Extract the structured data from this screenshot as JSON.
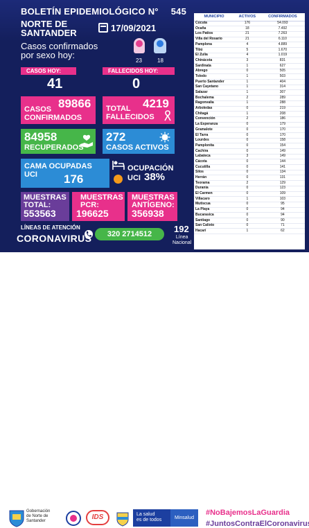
{
  "header": {
    "title": "BOLETÍN EPIDEMIOLÓGICO N°",
    "number": "545",
    "region_line1": "NORTE DE",
    "region_line2": "SANTANDER",
    "date": "17/09/2021",
    "sex_label_line1": "Casos confirmados",
    "sex_label_line2": "por sexo hoy:",
    "female_count": "23",
    "male_count": "18"
  },
  "today": {
    "cases_label": "CASOS HOY:",
    "cases_value": "41",
    "deaths_label": "FALLECIDOS HOY:",
    "deaths_value": "0"
  },
  "cards": {
    "confirmed_value": "89866",
    "confirmed_line1": "CASOS",
    "confirmed_line2": "CONFIRMADOS",
    "deaths_line1": "TOTAL",
    "deaths_line2": "FALLECIDOS",
    "deaths_value": "4219",
    "recovered_value": "84958",
    "recovered_label": "RECUPERADOS",
    "active_value": "272",
    "active_label": "CASOS ACTIVOS",
    "icu_line1": "CAMA OCUPADAS",
    "icu_line2": "UCI",
    "icu_value": "176",
    "occupancy_line1": "OCUPACIÓN",
    "occupancy_line2": "UCI",
    "occupancy_value": "38%",
    "tests_line1": "MUESTRAS",
    "tests_line2": "TOTAL:",
    "tests_value": "553563",
    "pcr_line1": "MUESTRAS",
    "pcr_line2": "PCR:",
    "pcr_value": "196625",
    "antigen_line1": "MUESTRAS",
    "antigen_line2": "ANTÍGENO:",
    "antigen_value": "356938"
  },
  "hotline": {
    "lines_label": "LÍNEAS DE ATENCIÓN",
    "coronavirus": "CORONAVIRUS",
    "phone": "320 2714512",
    "short_number": "192",
    "short_label_line1": "Línea",
    "short_label_line2": "Nacional"
  },
  "table": {
    "headers": [
      "MUNICIPIO",
      "ACTIVOS",
      "CONFIRMADOS"
    ],
    "rows": [
      [
        "Cúcuta",
        "176",
        "54.093"
      ],
      [
        "Ocaña",
        "18",
        "7.492"
      ],
      [
        "Los Patios",
        "21",
        "7.263"
      ],
      [
        "Villa del Rosario",
        "21",
        "6.110"
      ],
      [
        "Pamplona",
        "4",
        "4.889"
      ],
      [
        "Tibú",
        "5",
        "1.670"
      ],
      [
        "El Zulia",
        "4",
        "1.019"
      ],
      [
        "Chinácota",
        "3",
        "831"
      ],
      [
        "Sardinata",
        "1",
        "627"
      ],
      [
        "Abrego",
        "0",
        "505"
      ],
      [
        "Toledo",
        "1",
        "503"
      ],
      [
        "Puerto Santander",
        "1",
        "404"
      ],
      [
        "San Cayetano",
        "1",
        "314"
      ],
      [
        "Salazar",
        "1",
        "307"
      ],
      [
        "Bochalema",
        "2",
        "289"
      ],
      [
        "Ragonvalia",
        "1",
        "288"
      ],
      [
        "Arboledas",
        "0",
        "219"
      ],
      [
        "Chitagá",
        "1",
        "208"
      ],
      [
        "Convención",
        "2",
        "186"
      ],
      [
        "La Esperanza",
        "0",
        "179"
      ],
      [
        "Gramalote",
        "0",
        "170"
      ],
      [
        "El Tarra",
        "0",
        "170"
      ],
      [
        "Lourdes",
        "0",
        "158"
      ],
      [
        "Pamplonita",
        "0",
        "154"
      ],
      [
        "Cachira",
        "0",
        "149"
      ],
      [
        "Labateca",
        "3",
        "149"
      ],
      [
        "Cácota",
        "0",
        "144"
      ],
      [
        "Cucutilla",
        "0",
        "141"
      ],
      [
        "Silos",
        "0",
        "134"
      ],
      [
        "Herrán",
        "0",
        "131"
      ],
      [
        "Teorama",
        "2",
        "129"
      ],
      [
        "Durania",
        "0",
        "123"
      ],
      [
        "El Carmen",
        "0",
        "109"
      ],
      [
        "Villacaro",
        "1",
        "103"
      ],
      [
        "Mutiscua",
        "0",
        "95"
      ],
      [
        "La Playa",
        "0",
        "94"
      ],
      [
        "Bucarasica",
        "0",
        "94"
      ],
      [
        "Santiago",
        "0",
        "90"
      ],
      [
        "San Calixto",
        "0",
        "71"
      ],
      [
        "Hacarí",
        "1",
        "62"
      ]
    ]
  },
  "footer": {
    "gov_line1": "Gobernación",
    "gov_line2": "de Norte de",
    "gov_line3": "Santander",
    "ids": "IDS",
    "health_line1": "La salud",
    "health_line2": "es de todos",
    "minsalud": "Minsalud",
    "hashtag1": "#NoBajemosLaGuardia",
    "hashtag2": "#JuntosContraElCoronavirus"
  },
  "colors": {
    "navy": "#141f5c",
    "pink": "#e8308b",
    "green": "#46b649",
    "blue": "#2c8cd6",
    "purple": "#6a3d9a",
    "orange": "#f59a1b"
  }
}
